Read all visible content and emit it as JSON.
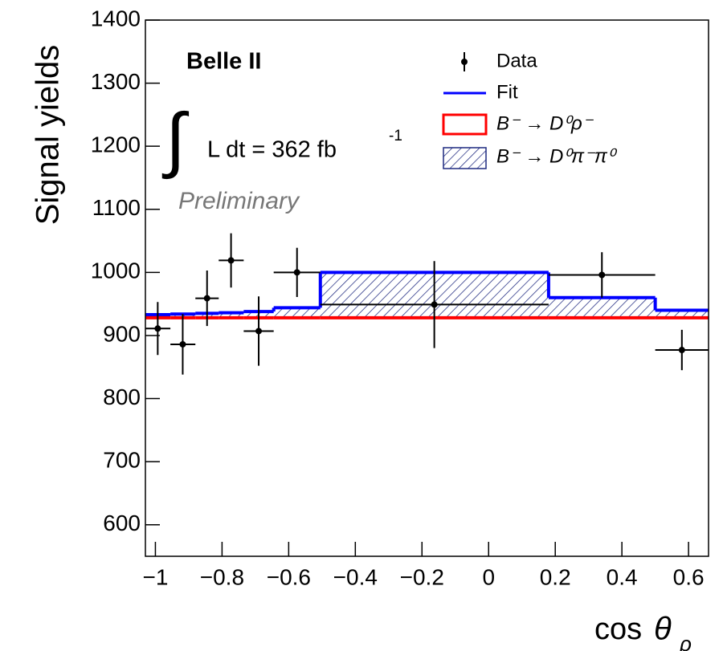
{
  "chart_data": {
    "type": "histogram",
    "y_label": "Signal yields",
    "x_label": {
      "text": "cos",
      "symbol": "θ",
      "subscript": "ρ"
    },
    "annotations": {
      "experiment": "Belle II",
      "integral": "∫",
      "lumi": "L dt = 362 fb",
      "lumi_exponent": "-1",
      "status": "Preliminary"
    },
    "bins": [
      -1.03,
      -0.955,
      -0.88,
      -0.81,
      -0.735,
      -0.645,
      -0.505,
      0.18,
      0.5,
      0.66
    ],
    "series": [
      {
        "name": "Data",
        "color": "#000000",
        "x": [
          -0.993,
          -0.918,
          -0.845,
          -0.773,
          -0.69,
          -0.575,
          -0.163,
          0.34,
          0.58
        ],
        "values": [
          911,
          886,
          959,
          1019,
          907,
          1000,
          949,
          996,
          877
        ],
        "yerr": [
          42,
          48,
          44,
          43,
          55,
          39,
          69,
          36,
          32
        ]
      },
      {
        "name": "Fit",
        "color": "#0000ff",
        "values": [
          933,
          934,
          935,
          936,
          938,
          944,
          1000,
          960,
          940
        ]
      },
      {
        "name": "B⁻ → D⁰ρ⁻",
        "color": "#ff0000",
        "values": [
          928,
          928,
          928,
          928,
          928,
          928,
          928,
          928,
          928
        ]
      },
      {
        "name": "B⁻ → D⁰π⁻π⁰",
        "color": "#1f2a80",
        "hatched": true,
        "stacked": true,
        "values": [
          5,
          6,
          7,
          8,
          10,
          16,
          72,
          32,
          12
        ]
      }
    ],
    "xlim": [
      -1.03,
      0.66
    ],
    "ylim": [
      550,
      1400
    ],
    "xticks": [
      {
        "value": -1,
        "label": "−1"
      },
      {
        "value": -0.8,
        "label": "−0.8"
      },
      {
        "value": -0.6,
        "label": "−0.6"
      },
      {
        "value": -0.4,
        "label": "−0.4"
      },
      {
        "value": -0.2,
        "label": "−0.2"
      },
      0,
      0.2,
      0.4,
      0.6
    ],
    "yticks": [
      600,
      700,
      800,
      900,
      1000,
      1100,
      1200,
      1300,
      1400
    ],
    "legend": "top-right"
  }
}
